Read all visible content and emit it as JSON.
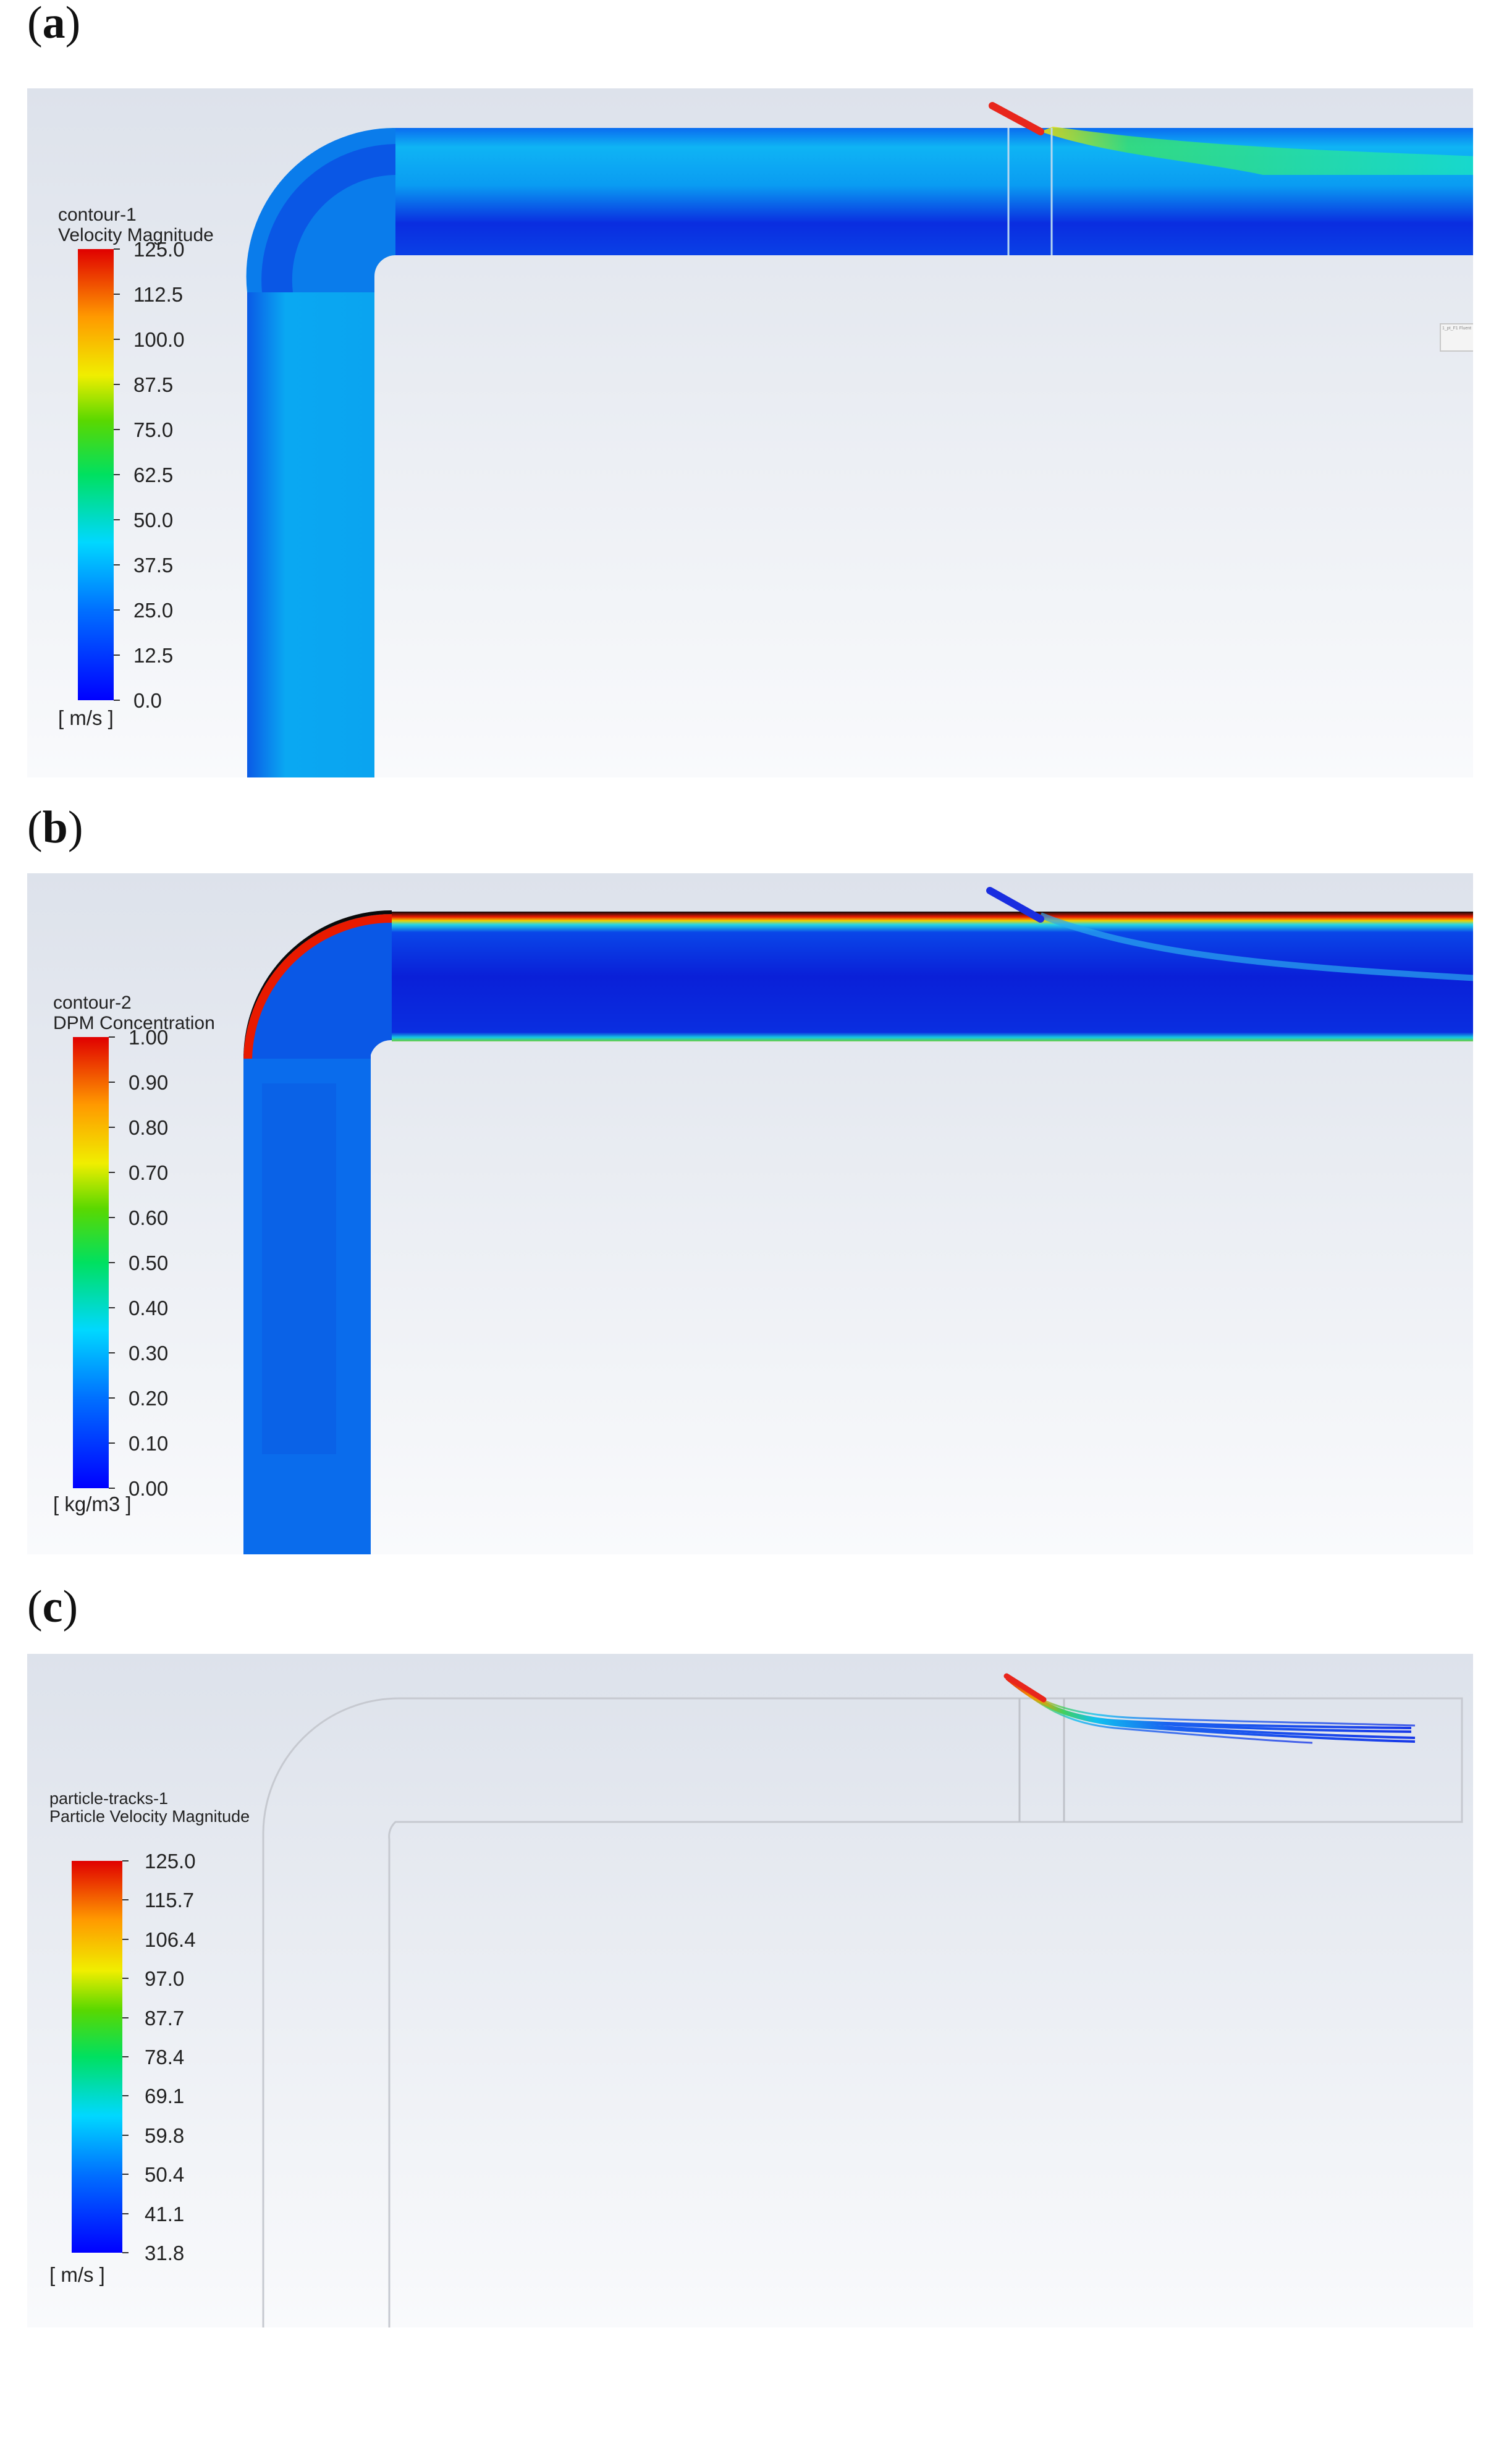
{
  "panels": [
    {
      "label": "a",
      "legend": {
        "title_line1": "contour-1",
        "title_line2": "Velocity Magnitude",
        "ticks": [
          "125.0",
          "112.5",
          "100.0",
          "87.5",
          "75.0",
          "62.5",
          "50.0",
          "37.5",
          "25.0",
          "12.5",
          "0.0"
        ],
        "unit": "[ m/s ]"
      },
      "tag_text": "1_pt_F1 Fluent"
    },
    {
      "label": "b",
      "legend": {
        "title_line1": "contour-2",
        "title_line2": "DPM Concentration",
        "ticks": [
          "1.00",
          "0.90",
          "0.80",
          "0.70",
          "0.60",
          "0.50",
          "0.40",
          "0.30",
          "0.20",
          "0.10",
          "0.00"
        ],
        "unit": "[ kg/m3 ]"
      }
    },
    {
      "label": "c",
      "legend": {
        "title_line1": "particle-tracks-1",
        "title_line2": "Particle Velocity Magnitude",
        "ticks": [
          "125.0",
          "115.7",
          "106.4",
          "97.0",
          "87.7",
          "78.4",
          "69.1",
          "59.8",
          "50.4",
          "41.1",
          "31.8"
        ],
        "unit": "[ m/s ]"
      }
    }
  ],
  "colors": {
    "background_top": "#dfe3ec",
    "background_bottom": "#f9fafc",
    "colormap": [
      "#0000ff",
      "#0070ff",
      "#00d8ff",
      "#00e060",
      "#5ad800",
      "#f0ee00",
      "#ff9900",
      "#ff2a00",
      "#e00000"
    ]
  }
}
